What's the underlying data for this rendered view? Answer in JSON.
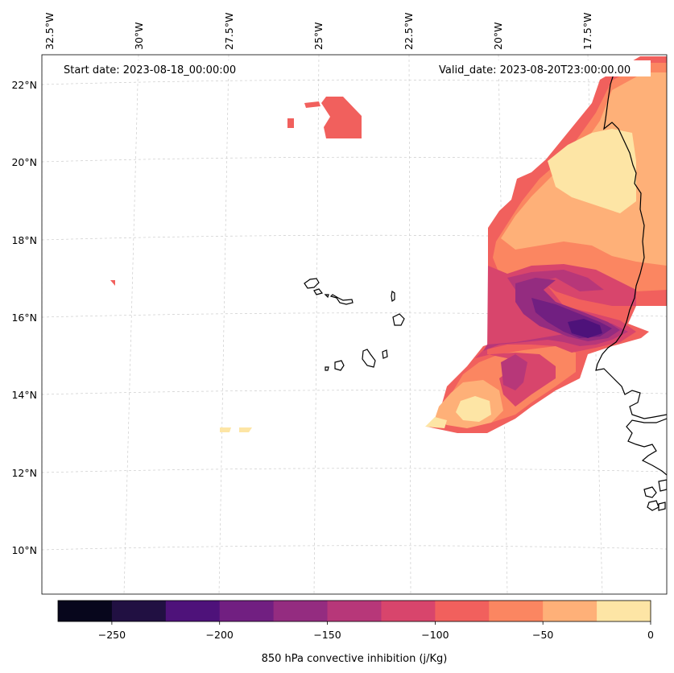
{
  "header": {
    "start_date": "Start date: 2023-08-18_00:00:00",
    "valid_date": "Valid_date: 2023-08-20T23:00:00.00"
  },
  "axes": {
    "lon_labels": [
      "32.5°W",
      "30°W",
      "27.5°W",
      "25°W",
      "22.5°W",
      "20°W",
      "17.5°W"
    ],
    "lat_labels": [
      "22°N",
      "20°N",
      "18°N",
      "16°N",
      "14°N",
      "12°N",
      "10°N"
    ]
  },
  "colorbar": {
    "title": "850 hPa convective inhibition (j/Kg)",
    "tick_labels": [
      "−250",
      "−200",
      "−150",
      "−100",
      "−50",
      "0"
    ],
    "levels": [
      -275,
      -250,
      -225,
      -200,
      -175,
      -150,
      -125,
      -100,
      -75,
      -50,
      -25,
      0
    ],
    "colors": [
      "#07061c",
      "#211042",
      "#4e127a",
      "#711f81",
      "#942c80",
      "#b73779",
      "#d8456c",
      "#f1605d",
      "#fb8661",
      "#feb078",
      "#fde5a5"
    ]
  },
  "regions": [
    {
      "name": "cin-band-minus-100-to-minus-75",
      "color": "#f1605d"
    },
    {
      "name": "cin-band-minus-75-to-minus-50",
      "color": "#fb8661"
    },
    {
      "name": "cin-band-minus-50-to-minus-25",
      "color": "#feb078"
    },
    {
      "name": "cin-band-minus-25-to-0",
      "color": "#fde5a5"
    },
    {
      "name": "cin-band-minus-150-to-minus-125",
      "color": "#b73779"
    },
    {
      "name": "cin-band-minus-125-to-minus-100",
      "color": "#d8456c"
    },
    {
      "name": "cin-band-minus-175-to-minus-150",
      "color": "#942c80"
    },
    {
      "name": "cin-band-minus-200-to-minus-175",
      "color": "#711f81"
    },
    {
      "name": "cin-band-minus-225-to-minus-200",
      "color": "#4e127a"
    }
  ]
}
